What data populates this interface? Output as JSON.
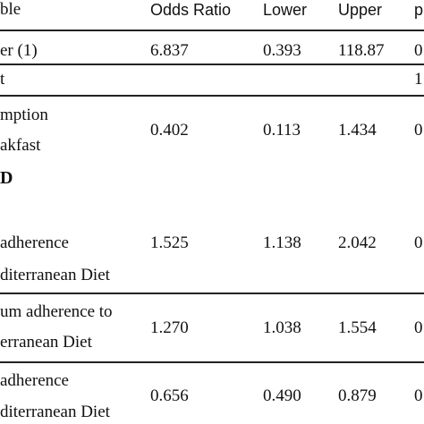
{
  "header": {
    "variable": "ble",
    "odds_ratio": "Odds Ratio",
    "lower": "Lower",
    "upper": "Upper",
    "p": "p"
  },
  "rows": [
    {
      "label": "er (1)",
      "or": "6.837",
      "lower": "0.393",
      "upper": "118.87",
      "p": "0"
    },
    {
      "label": "t",
      "or": "",
      "lower": "",
      "upper": "",
      "p": "1"
    },
    {
      "label_lines": [
        "mption",
        "akfast"
      ],
      "or": "0.402",
      "lower": "0.113",
      "upper": "1.434",
      "p": "0"
    },
    {
      "section": "D"
    },
    {
      "label_lines": [
        "adherence",
        "diterranean Diet"
      ],
      "or": "1.525",
      "lower": "1.138",
      "upper": "2.042",
      "p": "0"
    },
    {
      "label_lines": [
        "um adherence to",
        "erranean Diet"
      ],
      "or": "1.270",
      "lower": "1.038",
      "upper": "1.554",
      "p": "0"
    },
    {
      "label_lines": [
        "adherence",
        "diterranean Diet"
      ],
      "or": "0.656",
      "lower": "0.490",
      "upper": "0.879",
      "p": "0"
    }
  ]
}
